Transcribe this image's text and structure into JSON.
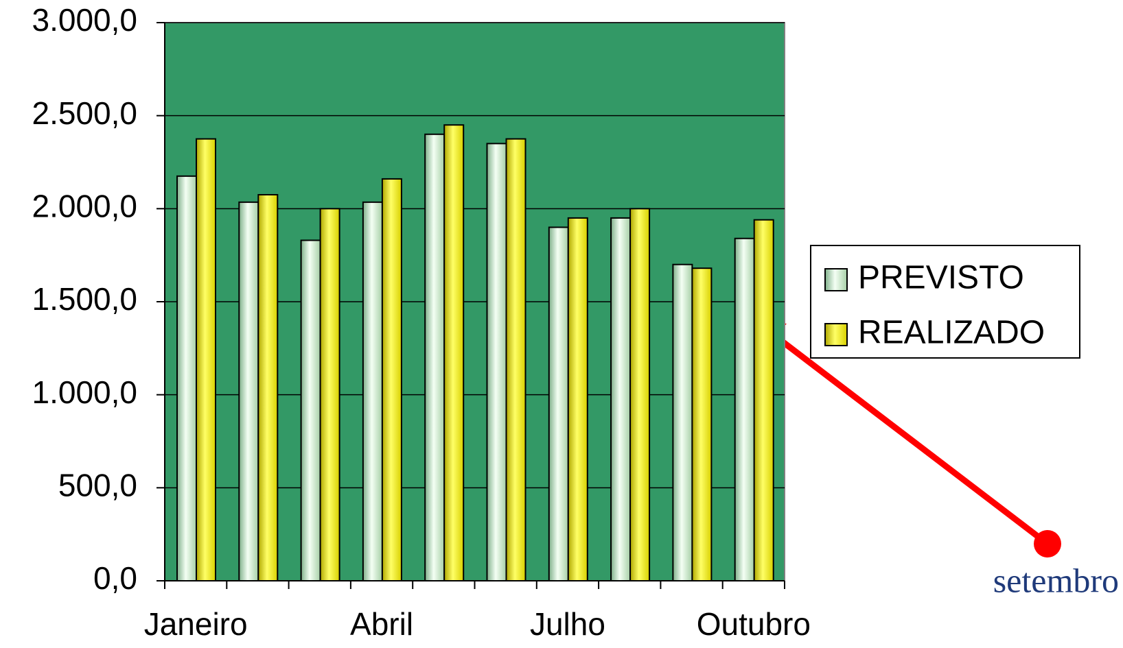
{
  "chart_data": {
    "type": "bar",
    "categories": [
      "Janeiro",
      null,
      null,
      "Abril",
      null,
      null,
      "Julho",
      null,
      null,
      "Outubro"
    ],
    "series": [
      {
        "name": "PREVISTO",
        "color": "#ccffcc",
        "values": [
          2175,
          2035,
          1830,
          2035,
          2400,
          2350,
          1900,
          1950,
          1700,
          1840
        ]
      },
      {
        "name": "REALIZADO",
        "color": "#ffff00",
        "values": [
          2375,
          2075,
          2000,
          2160,
          2450,
          2375,
          1950,
          2000,
          1680,
          1940
        ]
      }
    ],
    "ylim": [
      0,
      3000
    ],
    "yticks": [
      {
        "value": 0,
        "label": "0,0"
      },
      {
        "value": 500,
        "label": "500,0"
      },
      {
        "value": 1000,
        "label": "1.000,0"
      },
      {
        "value": 1500,
        "label": "1.500,0"
      },
      {
        "value": 2000,
        "label": "2.000,0"
      },
      {
        "value": 2500,
        "label": "2.500,0"
      },
      {
        "value": 3000,
        "label": "3.000,0"
      }
    ],
    "grid": true,
    "plot_background": "#339966",
    "legend": "right",
    "annotations": [
      {
        "text": "setembro"
      }
    ]
  }
}
